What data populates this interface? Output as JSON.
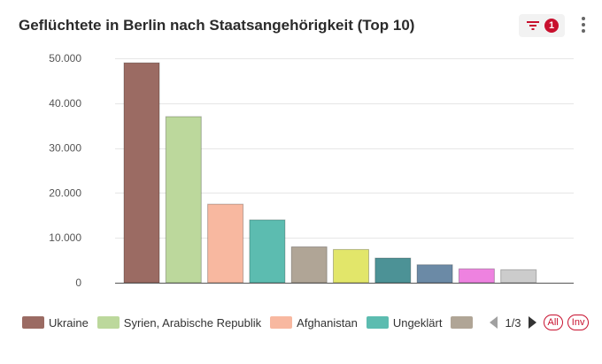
{
  "header": {
    "title": "Geflüchtete in Berlin nach Staatsangehörigkeit (Top 10)",
    "filter_count": "1",
    "filter_icon": "filter-icon",
    "more_icon": "more-vertical-icon"
  },
  "chart_data": {
    "type": "bar",
    "title": "Geflüchtete in Berlin nach Staatsangehörigkeit (Top 10)",
    "xlabel": "",
    "ylabel": "",
    "ylim": [
      0,
      50000
    ],
    "yticks": [
      0,
      10000,
      20000,
      30000,
      40000,
      50000
    ],
    "ytick_labels": [
      "0",
      "10.000",
      "20.000",
      "30.000",
      "40.000",
      "50.000"
    ],
    "grid": true,
    "legend_position": "bottom",
    "bars": [
      {
        "value": 49000,
        "color": "#9b6b63"
      },
      {
        "value": 37000,
        "color": "#bcd89c"
      },
      {
        "value": 17500,
        "color": "#f8b8a0"
      },
      {
        "value": 14000,
        "color": "#5cbcb0"
      },
      {
        "value": 8000,
        "color": "#b0a596"
      },
      {
        "value": 7400,
        "color": "#e2e66a"
      },
      {
        "value": 5500,
        "color": "#4c9296"
      },
      {
        "value": 4000,
        "color": "#6b8aa6"
      },
      {
        "value": 3100,
        "color": "#ee82e0"
      },
      {
        "value": 2900,
        "color": "#cccccc"
      }
    ]
  },
  "legend": {
    "items": [
      {
        "label": "Ukraine",
        "color": "#9b6b63"
      },
      {
        "label": "Syrien, Arabische Republik",
        "color": "#bcd89c"
      },
      {
        "label": "Afghanistan",
        "color": "#f8b8a0"
      },
      {
        "label": "Ungeklärt",
        "color": "#5cbcb0"
      },
      {
        "label": "",
        "color": "#b0a596"
      }
    ],
    "page": "1/3",
    "all_label": "All",
    "inv_label": "Inv"
  }
}
